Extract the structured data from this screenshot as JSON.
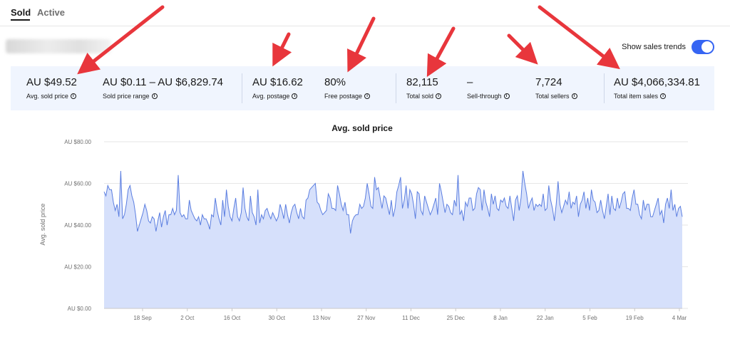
{
  "tabs": [
    {
      "label": "Sold",
      "active": true
    },
    {
      "label": "Active",
      "active": false
    }
  ],
  "trends": {
    "label": "Show sales trends",
    "enabled": true
  },
  "metrics": [
    {
      "value": "AU $49.52",
      "label": "Avg. sold price"
    },
    {
      "value": "AU $0.11 – AU $6,829.74",
      "label": "Sold price range"
    },
    {
      "value": "AU $16.62",
      "label": "Avg. postage"
    },
    {
      "value": "80%",
      "label": "Free postage"
    },
    {
      "value": "82,115",
      "label": "Total sold"
    },
    {
      "value": "–",
      "label": "Sell-through"
    },
    {
      "value": "7,724",
      "label": "Total sellers"
    },
    {
      "value": "AU $4,066,334.81",
      "label": "Total item sales"
    }
  ],
  "colors": {
    "accent": "#3665f3",
    "line": "#5b7ee0",
    "fill": "#d6e0fb",
    "arrow": "#e8363c",
    "panel": "#f0f5fe"
  },
  "chart_data": {
    "type": "area",
    "title": "Avg. sold price",
    "ylabel": "Avg. sold price",
    "xlabel": "",
    "ylim": [
      0,
      80
    ],
    "ytick_labels": [
      "AU $0.00",
      "AU $20.00",
      "AU $40.00",
      "AU $60.00",
      "AU $80.00"
    ],
    "x_tick_labels": [
      "18 Sep",
      "2 Oct",
      "16 Oct",
      "30 Oct",
      "13 Nov",
      "27 Nov",
      "11 Dec",
      "25 Dec",
      "8 Jan",
      "22 Jan",
      "5 Feb",
      "19 Feb",
      "4 Mar"
    ],
    "grid": true,
    "series": [
      {
        "values": [
          56,
          54,
          59,
          57,
          57,
          51,
          47,
          50,
          44,
          66,
          43,
          45,
          50,
          57,
          59,
          54,
          51,
          45,
          37,
          40,
          43,
          46,
          50,
          47,
          42,
          41,
          44,
          43,
          37,
          42,
          46,
          39,
          44,
          47,
          40,
          45,
          45,
          48,
          45,
          47,
          64,
          46,
          44,
          45,
          43,
          43,
          52,
          47,
          45,
          43,
          42,
          44,
          40,
          45,
          43,
          43,
          41,
          38,
          45,
          44,
          53,
          47,
          43,
          40,
          52,
          44,
          57,
          49,
          44,
          42,
          48,
          53,
          44,
          42,
          46,
          58,
          48,
          44,
          42,
          54,
          46,
          44,
          40,
          57,
          41,
          45,
          43,
          47,
          48,
          45,
          43,
          46,
          44,
          42,
          44,
          50,
          47,
          43,
          50,
          45,
          41,
          46,
          49,
          50,
          46,
          43,
          48,
          44,
          43,
          52,
          53,
          57,
          58,
          59,
          60,
          51,
          50,
          47,
          45,
          46,
          47,
          55,
          53,
          48,
          48,
          47,
          59,
          55,
          50,
          47,
          51,
          45,
          45,
          36,
          42,
          44,
          45,
          45,
          50,
          48,
          49,
          53,
          60,
          55,
          49,
          48,
          63,
          57,
          58,
          53,
          48,
          54,
          53,
          49,
          45,
          52,
          44,
          48,
          56,
          59,
          63,
          48,
          52,
          59,
          48,
          57,
          55,
          50,
          43,
          56,
          55,
          47,
          45,
          54,
          51,
          48,
          45,
          47,
          50,
          53,
          45,
          60,
          56,
          51,
          46,
          50,
          49,
          46,
          45,
          52,
          49,
          64,
          45,
          47,
          42,
          51,
          49,
          53,
          53,
          47,
          48,
          55,
          58,
          57,
          47,
          57,
          51,
          48,
          44,
          55,
          50,
          54,
          48,
          47,
          52,
          51,
          53,
          49,
          48,
          54,
          48,
          42,
          52,
          54,
          47,
          53,
          66,
          60,
          55,
          48,
          51,
          53,
          47,
          50,
          49,
          50,
          49,
          55,
          47,
          48,
          59,
          52,
          48,
          42,
          50,
          61,
          50,
          46,
          49,
          52,
          50,
          56,
          48,
          51,
          50,
          54,
          44,
          50,
          52,
          56,
          48,
          53,
          47,
          57,
          52,
          51,
          46,
          47,
          52,
          47,
          43,
          49,
          55,
          45,
          54,
          48,
          47,
          53,
          48,
          51,
          55,
          56,
          48,
          48,
          47,
          53,
          57,
          50,
          50,
          45,
          43,
          52,
          47,
          50,
          50,
          44,
          44,
          47,
          50,
          53,
          45,
          47,
          41,
          50,
          53,
          48,
          57,
          47,
          50,
          44,
          48,
          49,
          44
        ]
      }
    ]
  }
}
